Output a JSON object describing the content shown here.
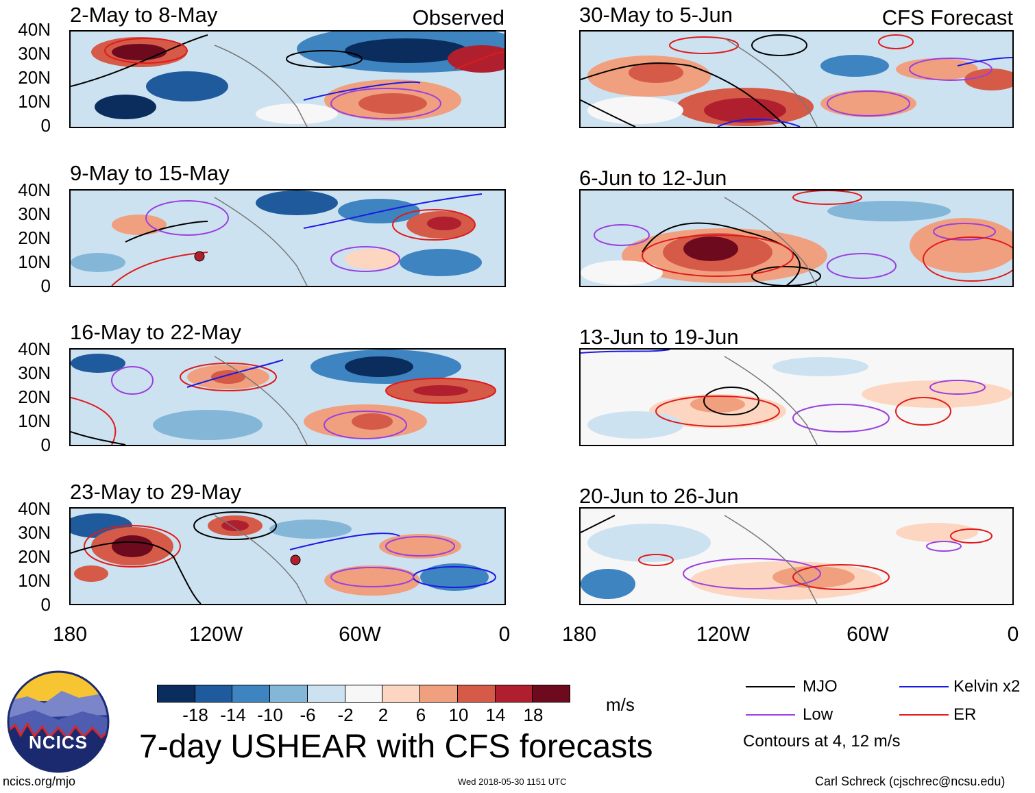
{
  "headers": {
    "left": "Observed",
    "right": "CFS Forecast"
  },
  "left_panels": [
    {
      "period": "2-May to 8-May"
    },
    {
      "period": "9-May to 15-May"
    },
    {
      "period": "16-May to 22-May"
    },
    {
      "period": "23-May to 29-May"
    }
  ],
  "right_panels": [
    {
      "period": "30-May to 5-Jun"
    },
    {
      "period": "6-Jun to 12-Jun"
    },
    {
      "period": "13-Jun to 19-Jun"
    },
    {
      "period": "20-Jun to 26-Jun"
    }
  ],
  "y_labels": [
    "40N",
    "30N",
    "20N",
    "10N",
    "0"
  ],
  "x_labels": [
    "180",
    "120W",
    "60W",
    "0"
  ],
  "colorbar": {
    "units": "m/s",
    "ticks": [
      "-18",
      "-14",
      "-10",
      "-6",
      "-2",
      "2",
      "6",
      "10",
      "14",
      "18"
    ],
    "colors": [
      "#0a2d5e",
      "#1f5a9c",
      "#3d84c0",
      "#84b6d8",
      "#cde2f0",
      "#f7f7f7",
      "#fcd6c0",
      "#f0a07e",
      "#d55a48",
      "#b01f2e",
      "#6e0a1e"
    ]
  },
  "legend": {
    "items": [
      {
        "label": "MJO",
        "color": "#000000"
      },
      {
        "label": "Kelvin x2",
        "color": "#1a1ae6"
      },
      {
        "label": "Low",
        "color": "#9a3fe0"
      },
      {
        "label": "ER",
        "color": "#e01a1a"
      }
    ],
    "note": "Contours at 4, 12 m/s"
  },
  "logo": {
    "text": "NCICS"
  },
  "main_title": "7-day USHEAR with CFS forecasts",
  "footer": {
    "url": "ncics.org/mjo",
    "timestamp": "Wed 2018-05-30 1151 UTC",
    "author": "Carl Schreck (cjschrec@ncsu.edu)"
  }
}
